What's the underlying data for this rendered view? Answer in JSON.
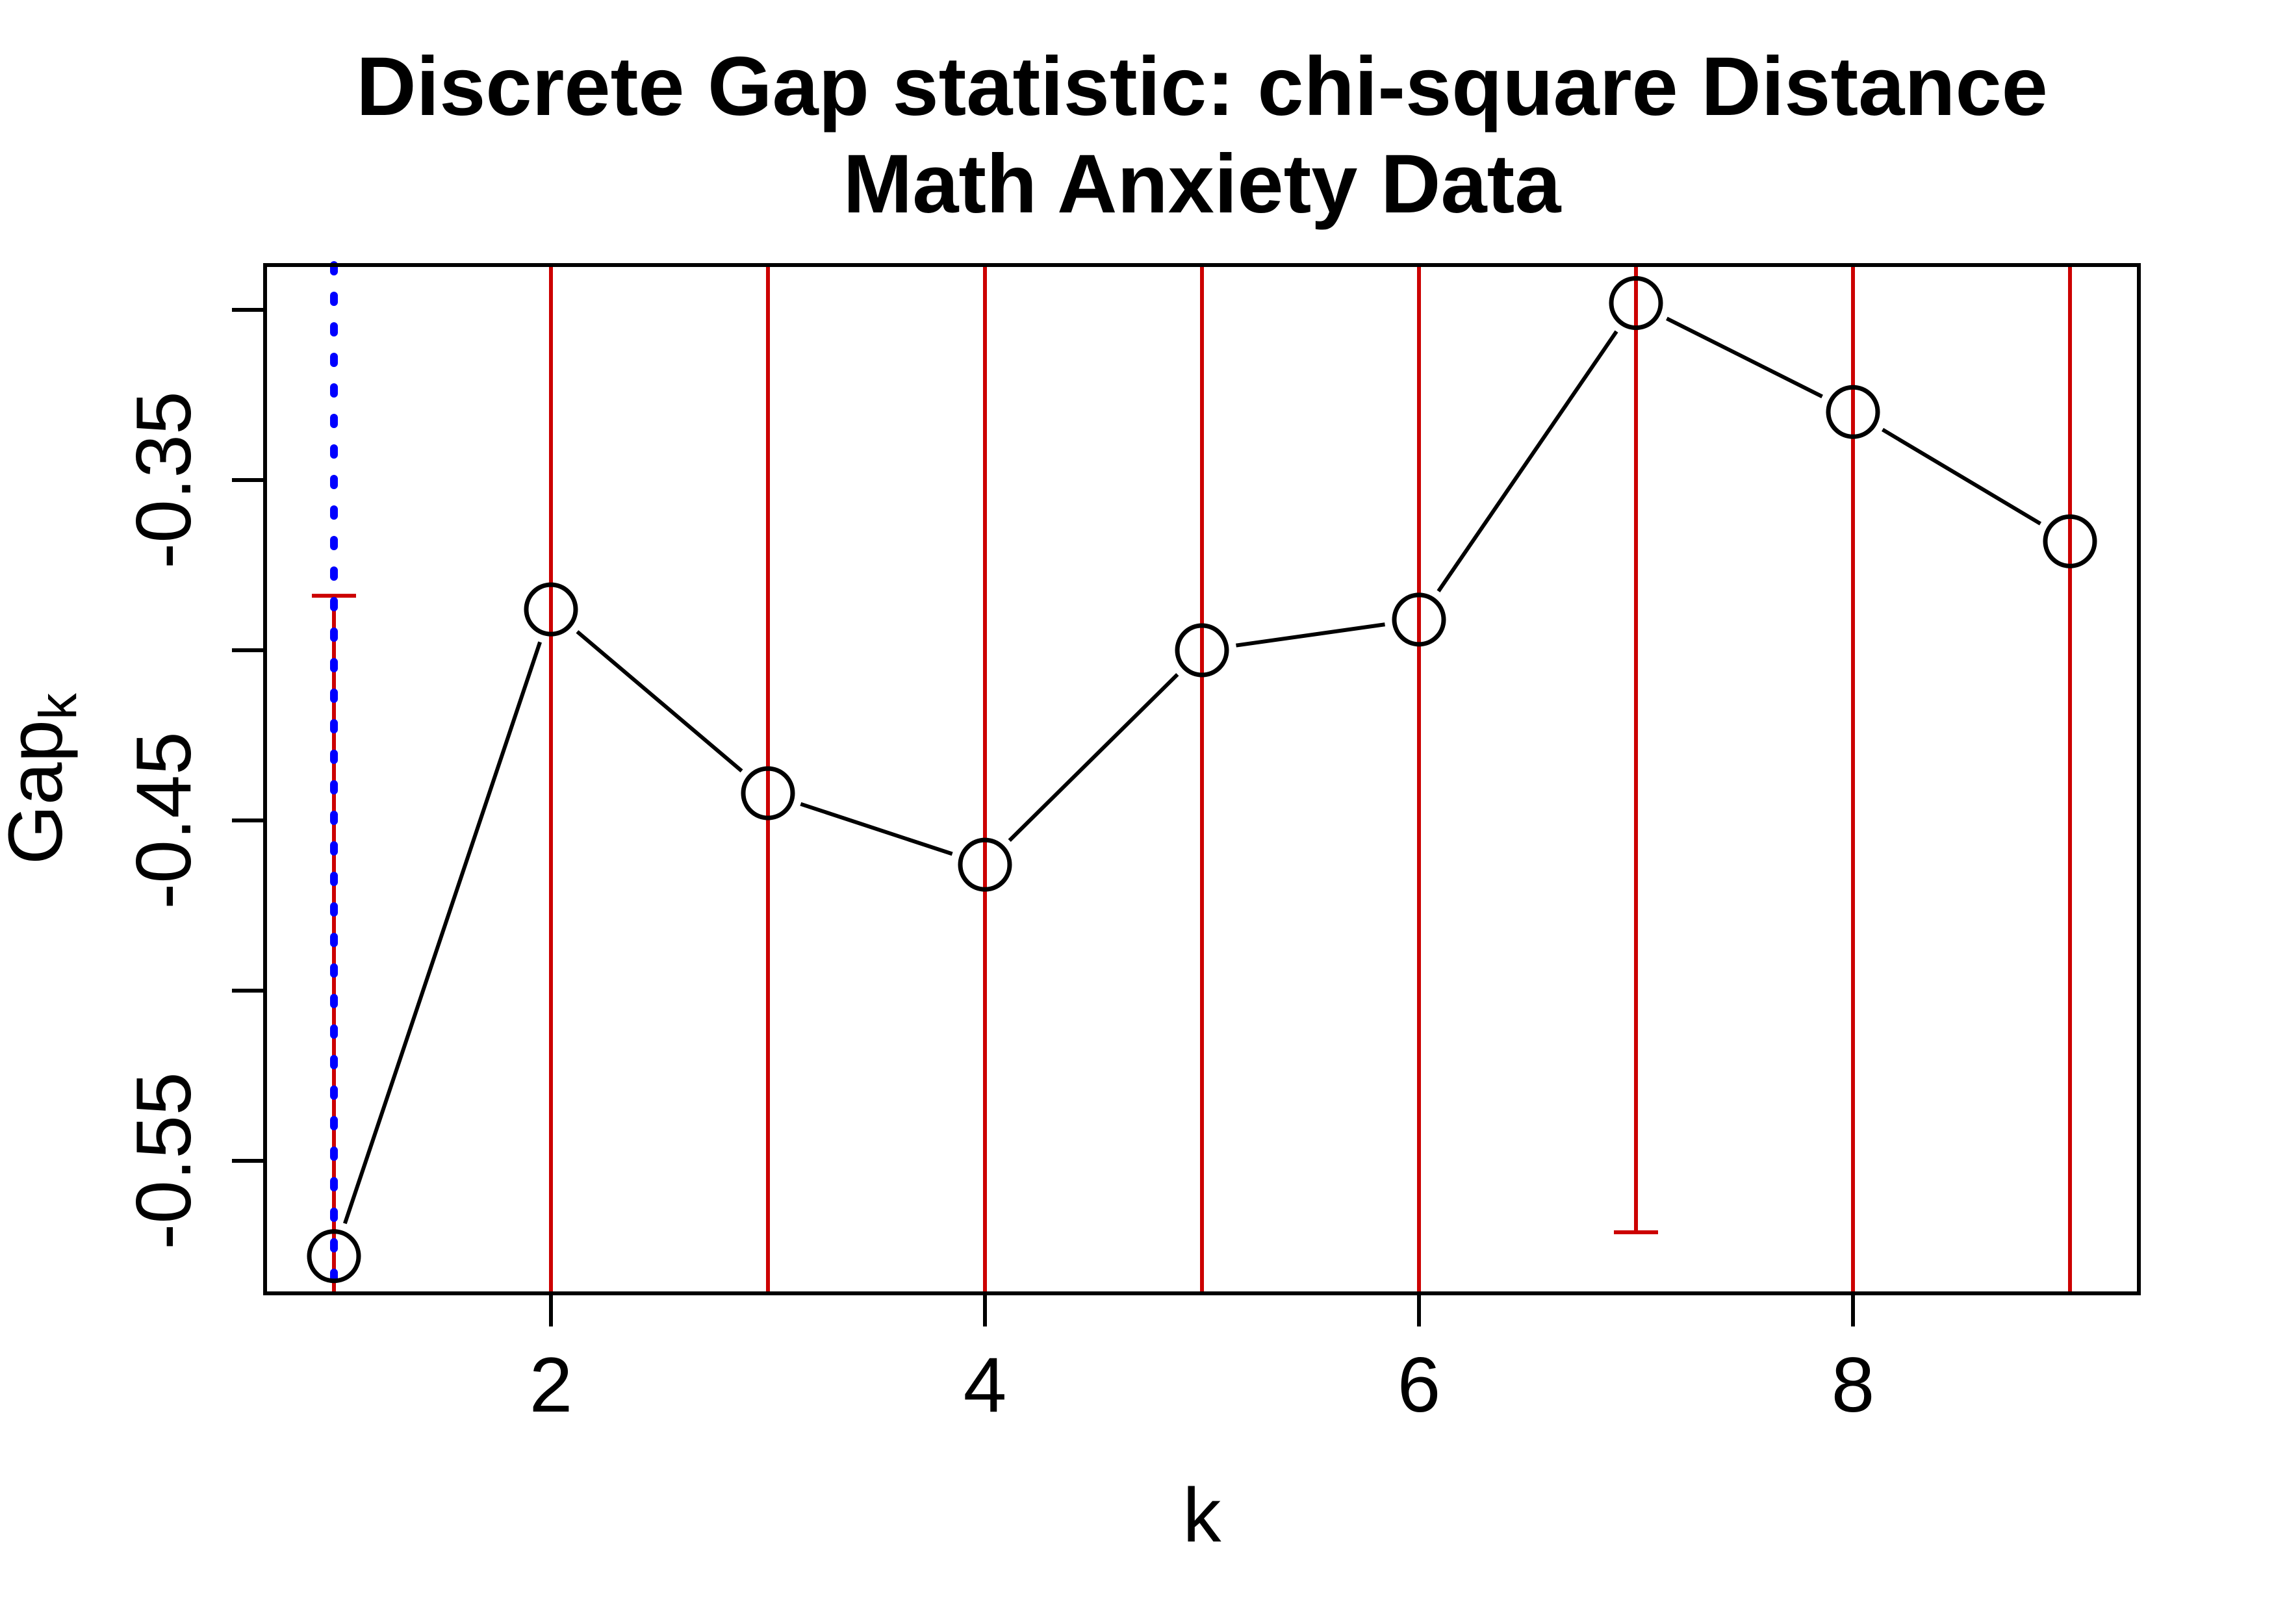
{
  "colors": {
    "error_bar": "#CC0000",
    "reference_line": "#0000FF",
    "series_line": "#000000",
    "marker_stroke": "#000000",
    "axis": "#000000",
    "background": "#FFFFFF"
  },
  "chart_data": {
    "type": "line",
    "title_lines": [
      "Discrete Gap statistic: chi-square Distance",
      "Math Anxiety Data"
    ],
    "xlabel": "k",
    "ylabel": "Gap_k",
    "ylabel_main": "Gap",
    "ylabel_sub": "k",
    "x": [
      1,
      2,
      3,
      4,
      5,
      6,
      7,
      8,
      9
    ],
    "series": [
      {
        "name": "Gap_k",
        "values": [
          -0.578,
          -0.388,
          -0.442,
          -0.463,
          -0.4,
          -0.391,
          -0.298,
          -0.33,
          -0.368
        ]
      }
    ],
    "marker": "open-circle",
    "grid": false,
    "legend": null,
    "xlim": [
      0.68,
      9.32
    ],
    "ylim": [
      -0.589,
      -0.287
    ],
    "x_ticks": [
      2,
      4,
      6,
      8
    ],
    "y_ticks": [
      -0.3,
      -0.35,
      -0.4,
      -0.45,
      -0.5,
      -0.55
    ],
    "y_ticks_labeled": [
      {
        "value": -0.35,
        "label": "-0.35"
      },
      {
        "value": -0.45,
        "label": "-0.45"
      },
      {
        "value": -0.55,
        "label": "-0.55"
      }
    ],
    "reference_vline": {
      "x": 1,
      "style": "dotted",
      "color": "#0000FF"
    },
    "error_bars": {
      "color": "#CC0000",
      "cap_halfwidth_x_units": 0.1,
      "bars": [
        {
          "k": 1,
          "top": -0.384,
          "top_capped": true,
          "bottom": "clipped",
          "bottom_capped": false
        },
        {
          "k": 2,
          "top": "clipped",
          "top_capped": false,
          "bottom": "clipped",
          "bottom_capped": false
        },
        {
          "k": 3,
          "top": "clipped",
          "top_capped": false,
          "bottom": "clipped",
          "bottom_capped": false
        },
        {
          "k": 4,
          "top": "clipped",
          "top_capped": false,
          "bottom": "clipped",
          "bottom_capped": false
        },
        {
          "k": 5,
          "top": "clipped",
          "top_capped": false,
          "bottom": "clipped",
          "bottom_capped": false
        },
        {
          "k": 6,
          "top": "clipped",
          "top_capped": false,
          "bottom": "clipped",
          "bottom_capped": false
        },
        {
          "k": 7,
          "top": "clipped",
          "top_capped": false,
          "bottom": -0.571,
          "bottom_capped": true
        },
        {
          "k": 8,
          "top": "clipped",
          "top_capped": false,
          "bottom": "clipped",
          "bottom_capped": false
        },
        {
          "k": 9,
          "top": "clipped",
          "top_capped": false,
          "bottom": "clipped",
          "bottom_capped": false
        }
      ]
    }
  }
}
